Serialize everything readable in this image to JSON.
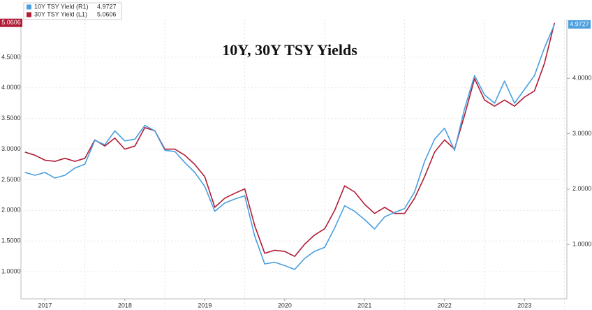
{
  "chart_data": {
    "type": "line",
    "title": "10Y, 30Y TSY Yields",
    "x": [
      2017.25,
      2017.375,
      2017.5,
      2017.625,
      2017.75,
      2017.875,
      2018,
      2018.125,
      2018.25,
      2018.375,
      2018.5,
      2018.625,
      2018.75,
      2018.875,
      2019,
      2019.125,
      2019.25,
      2019.375,
      2019.5,
      2019.625,
      2019.75,
      2019.875,
      2020,
      2020.125,
      2020.25,
      2020.375,
      2020.5,
      2020.625,
      2020.75,
      2020.875,
      2021,
      2021.125,
      2021.25,
      2021.375,
      2021.5,
      2021.625,
      2021.75,
      2021.875,
      2022,
      2022.125,
      2022.25,
      2022.375,
      2022.5,
      2022.625,
      2022.75,
      2022.875,
      2023,
      2023.125,
      2023.25,
      2023.375,
      2023.5,
      2023.625,
      2023.75,
      2023.875
    ],
    "series": [
      {
        "name": "10Y TSY Yield (R1)",
        "color": "#4a9fe0",
        "axis": "y2",
        "values": [
          2.3,
          2.25,
          2.3,
          2.2,
          2.25,
          2.38,
          2.45,
          2.88,
          2.8,
          3.05,
          2.87,
          2.9,
          3.15,
          3.05,
          2.7,
          2.68,
          2.48,
          2.3,
          2.05,
          1.6,
          1.75,
          1.82,
          1.88,
          1.15,
          0.65,
          0.68,
          0.62,
          0.55,
          0.75,
          0.88,
          0.95,
          1.3,
          1.7,
          1.6,
          1.45,
          1.28,
          1.5,
          1.58,
          1.65,
          1.95,
          2.5,
          2.9,
          3.1,
          2.7,
          3.45,
          4.05,
          3.7,
          3.55,
          3.95,
          3.55,
          3.8,
          4.05,
          4.55,
          4.9727
        ]
      },
      {
        "name": "30Y TSY Yield (L1)",
        "color": "#b01c35",
        "axis": "y",
        "values": [
          2.95,
          2.9,
          2.82,
          2.8,
          2.85,
          2.8,
          2.85,
          3.15,
          3.05,
          3.18,
          3.0,
          3.05,
          3.35,
          3.3,
          3.0,
          3.0,
          2.9,
          2.75,
          2.55,
          2.05,
          2.2,
          2.28,
          2.35,
          1.75,
          1.3,
          1.35,
          1.33,
          1.25,
          1.45,
          1.6,
          1.7,
          2.0,
          2.4,
          2.3,
          2.1,
          1.95,
          2.05,
          1.95,
          1.95,
          2.2,
          2.55,
          2.95,
          3.15,
          3.0,
          3.55,
          4.15,
          3.8,
          3.7,
          3.8,
          3.7,
          3.85,
          3.95,
          4.4,
          5.0606
        ]
      }
    ],
    "xlim": [
      2017.2,
      2024.03
    ],
    "xticks": [
      {
        "value": 2017.5,
        "label": "2017"
      },
      {
        "value": 2018.5,
        "label": "2018"
      },
      {
        "value": 2019.5,
        "label": "2019"
      },
      {
        "value": 2020.5,
        "label": "2020"
      },
      {
        "value": 2021.5,
        "label": "2021"
      },
      {
        "value": 2022.5,
        "label": "2022"
      },
      {
        "value": 2023.5,
        "label": "2023"
      }
    ],
    "ylim": [
      0.557,
      5.114
    ],
    "yticks": [
      {
        "value": 1,
        "label": "1.0000"
      },
      {
        "value": 1.5,
        "label": "1.5000"
      },
      {
        "value": 2,
        "label": "2.0000"
      },
      {
        "value": 2.5,
        "label": "2.5000"
      },
      {
        "value": 3,
        "label": "3.0000"
      },
      {
        "value": 3.5,
        "label": "3.5000"
      },
      {
        "value": 4,
        "label": "4.0000"
      },
      {
        "value": 4.5,
        "label": "4.5000"
      }
    ],
    "y2lim": [
      0.02,
      5.06
    ],
    "y2ticks": [
      {
        "value": 1,
        "label": "1.0000"
      },
      {
        "value": 2,
        "label": "2.0000"
      },
      {
        "value": 3,
        "label": "3.0000"
      },
      {
        "value": 4,
        "label": "4.0000"
      }
    ],
    "grid": true,
    "legend": "top-left"
  }
}
